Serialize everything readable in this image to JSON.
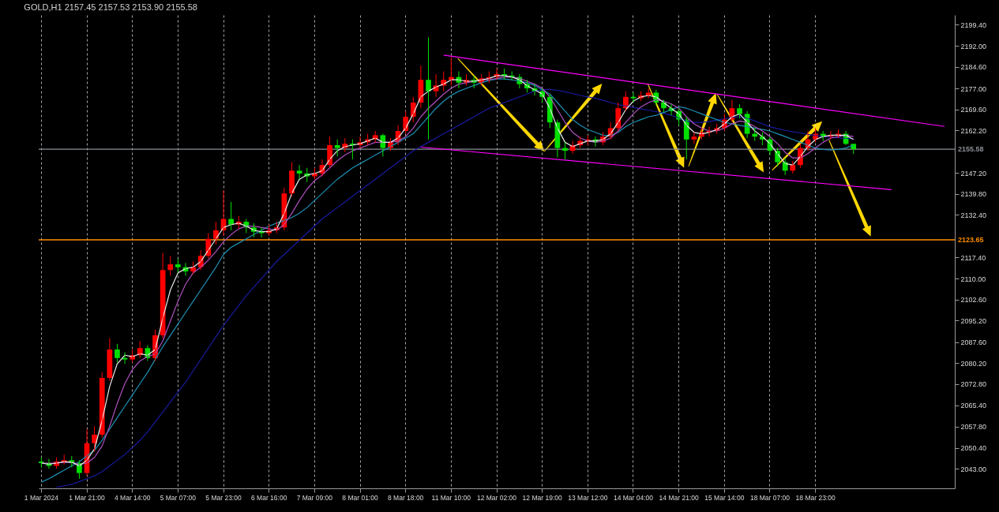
{
  "chart_data": {
    "type": "candlestick",
    "title": "GOLD,H1  2157.45 2157.53 2153.90 2155.58",
    "categories": [
      "1 Mar 2024",
      null,
      null,
      null,
      null,
      null,
      "1 Mar 21:00",
      null,
      null,
      null,
      null,
      null,
      "4 Mar 14:00",
      null,
      null,
      null,
      null,
      null,
      "5 Mar 07:00",
      null,
      null,
      null,
      null,
      null,
      "5 Mar 23:00",
      null,
      null,
      null,
      null,
      null,
      "6 Mar 16:00",
      null,
      null,
      null,
      null,
      null,
      "7 Mar 09:00",
      null,
      null,
      null,
      null,
      null,
      "8 Mar 01:00",
      null,
      null,
      null,
      null,
      null,
      "8 Mar 18:00",
      null,
      null,
      null,
      null,
      null,
      "11 Mar 10:00",
      null,
      null,
      null,
      null,
      null,
      "12 Mar 02:00",
      null,
      null,
      null,
      null,
      null,
      "12 Mar 19:00",
      null,
      null,
      null,
      null,
      null,
      "13 Mar 12:00",
      null,
      null,
      null,
      null,
      null,
      "14 Mar 04:00",
      null,
      null,
      null,
      null,
      null,
      "14 Mar 21:00",
      null,
      null,
      null,
      null,
      null,
      "15 Mar 14:00",
      null,
      null,
      null,
      null,
      null,
      "18 Mar 07:00",
      null,
      null,
      null,
      null,
      null,
      "18 Mar 23:00",
      null,
      null,
      null,
      null,
      null,
      null,
      null,
      null,
      null,
      null,
      null,
      null,
      null,
      null,
      null,
      null,
      null,
      null
    ],
    "ohlc": [
      [
        2045.5,
        2047,
        2043.5,
        2045
      ],
      [
        2045,
        2046.5,
        2043,
        2044
      ],
      [
        2044,
        2047,
        2043,
        2045.5
      ],
      [
        2045.5,
        2048,
        2044.5,
        2046
      ],
      [
        2046,
        2047.5,
        2043.5,
        2045
      ],
      [
        2045,
        2046,
        2039.5,
        2041.5
      ],
      [
        2041.5,
        2057,
        2040.5,
        2052
      ],
      [
        2052,
        2058,
        2049,
        2055
      ],
      [
        2055,
        2077,
        2054,
        2075
      ],
      [
        2075,
        2089,
        2074,
        2085
      ],
      [
        2085,
        2087,
        2080.5,
        2082
      ],
      [
        2082,
        2084,
        2080,
        2081.5
      ],
      [
        2081.5,
        2085,
        2080.5,
        2083
      ],
      [
        2083,
        2088,
        2082,
        2085.5
      ],
      [
        2085.5,
        2086.5,
        2081,
        2082
      ],
      [
        2082,
        2092,
        2081,
        2090
      ],
      [
        2090,
        2119,
        2089,
        2113
      ],
      [
        2113,
        2118,
        2111,
        2115
      ],
      [
        2115,
        2117,
        2112,
        2114
      ],
      [
        2114,
        2115.5,
        2111,
        2112.5
      ],
      [
        2112.5,
        2116,
        2111.5,
        2114
      ],
      [
        2114,
        2120,
        2113,
        2118
      ],
      [
        2118,
        2126,
        2117,
        2124
      ],
      [
        2124,
        2130,
        2122,
        2127
      ],
      [
        2127,
        2141,
        2125,
        2131
      ],
      [
        2131,
        2137,
        2127,
        2129
      ],
      [
        2129,
        2132,
        2127.5,
        2130
      ],
      [
        2130,
        2131,
        2126,
        2128
      ],
      [
        2128,
        2129.5,
        2124.5,
        2126.5
      ],
      [
        2126.5,
        2128,
        2124.5,
        2126
      ],
      [
        2126,
        2129,
        2125,
        2127
      ],
      [
        2127,
        2130,
        2126,
        2128
      ],
      [
        2128,
        2142,
        2127,
        2140
      ],
      [
        2140,
        2151,
        2139,
        2148
      ],
      [
        2148,
        2150,
        2145,
        2147
      ],
      [
        2147,
        2149,
        2144,
        2146
      ],
      [
        2146,
        2149,
        2145,
        2147
      ],
      [
        2147,
        2152,
        2146,
        2150
      ],
      [
        2150,
        2160,
        2149,
        2157
      ],
      [
        2157,
        2159,
        2153,
        2156
      ],
      [
        2156,
        2159.5,
        2154.5,
        2157.5
      ],
      [
        2157.5,
        2159,
        2152,
        2157
      ],
      [
        2157,
        2160,
        2156,
        2158
      ],
      [
        2158,
        2161,
        2157,
        2159
      ],
      [
        2159,
        2162,
        2158,
        2160.5
      ],
      [
        2160.5,
        2161,
        2153,
        2156
      ],
      [
        2156,
        2159.5,
        2155,
        2158
      ],
      [
        2158,
        2164,
        2157,
        2162
      ],
      [
        2162,
        2169,
        2161,
        2167
      ],
      [
        2167,
        2174,
        2165,
        2172
      ],
      [
        2172,
        2185,
        2170,
        2180
      ],
      [
        2180,
        2194.9,
        2159,
        2176
      ],
      [
        2176,
        2182,
        2174,
        2178
      ],
      [
        2178,
        2183,
        2176,
        2180
      ],
      [
        2180,
        2188,
        2178,
        2181
      ],
      [
        2181,
        2183,
        2177,
        2179
      ],
      [
        2179,
        2182,
        2178,
        2180
      ],
      [
        2180,
        2181.5,
        2177,
        2179
      ],
      [
        2179,
        2182,
        2178,
        2180.5
      ],
      [
        2180.5,
        2183,
        2179,
        2181
      ],
      [
        2181,
        2184,
        2180,
        2182
      ],
      [
        2182,
        2184,
        2180,
        2181.5
      ],
      [
        2181.5,
        2183,
        2180,
        2181
      ],
      [
        2181,
        2182,
        2177,
        2178.5
      ],
      [
        2178.5,
        2180,
        2175.5,
        2177
      ],
      [
        2177,
        2178.5,
        2174.5,
        2176
      ],
      [
        2176,
        2177,
        2172,
        2174
      ],
      [
        2174,
        2175,
        2163,
        2165
      ],
      [
        2165,
        2166,
        2152.7,
        2156
      ],
      [
        2156,
        2158,
        2152,
        2155
      ],
      [
        2155,
        2158.5,
        2154,
        2157
      ],
      [
        2157,
        2160,
        2156,
        2158.5
      ],
      [
        2158.5,
        2160.5,
        2157,
        2159
      ],
      [
        2159,
        2160,
        2156.5,
        2158
      ],
      [
        2158,
        2161.5,
        2157,
        2160
      ],
      [
        2160,
        2165,
        2159,
        2163
      ],
      [
        2163,
        2172,
        2162,
        2170
      ],
      [
        2170,
        2176,
        2169,
        2174
      ],
      [
        2174,
        2175.5,
        2172,
        2173.5
      ],
      [
        2173.5,
        2176,
        2172.5,
        2174.5
      ],
      [
        2174.5,
        2177,
        2173.5,
        2175.5
      ],
      [
        2175.5,
        2176.5,
        2171,
        2172
      ],
      [
        2172,
        2173,
        2168.5,
        2170
      ],
      [
        2170,
        2171.5,
        2167.5,
        2169
      ],
      [
        2169,
        2170,
        2164,
        2166
      ],
      [
        2166,
        2167,
        2152,
        2159
      ],
      [
        2159,
        2161.5,
        2157.5,
        2160
      ],
      [
        2160,
        2163,
        2159,
        2161.5
      ],
      [
        2161.5,
        2163.5,
        2160,
        2162
      ],
      [
        2162,
        2164.5,
        2161,
        2163
      ],
      [
        2163,
        2168,
        2162,
        2166
      ],
      [
        2166,
        2173,
        2165,
        2170
      ],
      [
        2170,
        2171.5,
        2166.5,
        2168
      ],
      [
        2168,
        2169,
        2159.5,
        2161
      ],
      [
        2161,
        2163,
        2158.5,
        2160
      ],
      [
        2160,
        2161.5,
        2157,
        2159
      ],
      [
        2159,
        2160,
        2153.5,
        2155
      ],
      [
        2155,
        2156,
        2149.5,
        2151
      ],
      [
        2151,
        2152.5,
        2146.5,
        2148
      ],
      [
        2148,
        2151.5,
        2147,
        2150
      ],
      [
        2150,
        2157.5,
        2149,
        2156
      ],
      [
        2156,
        2162,
        2155,
        2159
      ],
      [
        2159,
        2163,
        2158,
        2161
      ],
      [
        2161,
        2162,
        2158.5,
        2160
      ],
      [
        2160,
        2162,
        2159,
        2160.5
      ],
      [
        2160.5,
        2162.5,
        2159.5,
        2161
      ],
      [
        2161,
        2162,
        2157,
        2157.45
      ],
      [
        2157.45,
        2157.53,
        2153.9,
        2155.58
      ],
      null,
      null,
      null,
      null,
      null,
      null,
      null,
      null,
      null,
      null,
      null,
      null,
      null
    ],
    "colors": [
      "#00e000",
      "#00e000",
      "#ff0000",
      "#ff0000",
      "#00e000",
      "#00e000",
      "#ff0000",
      "#ff0000",
      "#ff0000",
      "#ff0000",
      "#00e000",
      "#00e000",
      "#ff0000",
      "#ff0000",
      "#00e000",
      "#ff0000",
      "#ff0000",
      "#ff0000",
      "#00e000",
      "#00e000",
      "#ff0000",
      "#ff0000",
      "#ff0000",
      "#ff0000",
      "#ff0000",
      "#00e000",
      "#ff0000",
      "#00e000",
      "#00e000",
      "#00e000",
      "#ff0000",
      "#ff0000",
      "#ff0000",
      "#ff0000",
      "#00e000",
      "#00e000",
      "#ff0000",
      "#ff0000",
      "#ff0000",
      "#00e000",
      "#ff0000",
      "#00e000",
      "#ff0000",
      "#ff0000",
      "#ff0000",
      "#00e000",
      "#ff0000",
      "#ff0000",
      "#ff0000",
      "#ff0000",
      "#ff0000",
      "#00e000",
      "#ff0000",
      "#ff0000",
      "#ff0000",
      "#00e000",
      "#ff0000",
      "#00e000",
      "#ff0000",
      "#ff0000",
      "#ff0000",
      "#00e000",
      "#00e000",
      "#00e000",
      "#00e000",
      "#00e000",
      "#00e000",
      "#00e000",
      "#00e000",
      "#00e000",
      "#ff0000",
      "#ff0000",
      "#ff0000",
      "#00e000",
      "#ff0000",
      "#ff0000",
      "#ff0000",
      "#ff0000",
      "#00e000",
      "#ff0000",
      "#ff0000",
      "#00e000",
      "#00e000",
      "#00e000",
      "#00e000",
      "#00e000",
      "#ff0000",
      "#ff0000",
      "#ff0000",
      "#ff0000",
      "#ff0000",
      "#ff0000",
      "#00e000",
      "#00e000",
      "#00e000",
      "#00e000",
      "#00e000",
      "#00e000",
      "#00e000",
      "#ff0000",
      "#ff0000",
      "#ff0000",
      "#ff0000",
      "#00e000",
      "#ff0000",
      "#ff0000",
      "#00e000",
      "#00e000",
      null,
      null,
      null,
      null,
      null,
      null,
      null,
      null,
      null,
      null,
      null,
      null,
      null
    ],
    "series": [
      {
        "type": "line",
        "color": "#1a1aa0",
        "values": [
          null,
          null,
          2036.5,
          2037,
          2037.5,
          2038.5,
          2039.5,
          2040.5,
          2042,
          2044,
          2046,
          2048,
          2050.5,
          2053,
          2056,
          2059.5,
          2063,
          2066.5,
          2070,
          2073.5,
          2077.5,
          2081.5,
          2085.5,
          2089.5,
          2093.5,
          2097,
          2100.5,
          2104,
          2107,
          2110,
          2113,
          2116,
          2118.5,
          2121,
          2123.5,
          2126,
          2128.5,
          2131,
          2133,
          2135,
          2137,
          2139,
          2141,
          2143,
          2145,
          2147,
          2149,
          2151,
          2153,
          2155,
          2156.5,
          2158,
          2159.5,
          2161,
          2162.5,
          2164,
          2165.5,
          2167,
          2168.5,
          2170,
          2171,
          2172,
          2173,
          2174,
          2175,
          2176,
          2176.5,
          2176.6,
          2176.3,
          2175.8,
          2175.2,
          2174.5,
          2174,
          2173.5,
          2172.8,
          2172,
          2171.3,
          2170.8,
          2170.3,
          2169.8,
          2169.3,
          2168.8,
          2168.3,
          2167.5,
          2166.5,
          2165.5,
          2165,
          2165,
          2165.3,
          2165.8,
          2166.3,
          2166.8,
          2167,
          2166.5,
          2165.5,
          2164.5,
          2163.5,
          2162.8,
          2162.2,
          2161.7,
          2161.3,
          2160.8,
          2160.4,
          2160,
          2159.8,
          2159.6,
          2159.4,
          2159.3,
          null,
          null,
          null,
          null,
          null,
          null,
          null,
          null,
          null,
          null,
          null,
          null,
          null
        ]
      },
      {
        "type": "line",
        "color": "#1e90b4",
        "values": [
          2038.3,
          2039.5,
          2041,
          2042.5,
          2044,
          2045.5,
          2047.5,
          2049.5,
          2053,
          2057,
          2061,
          2065,
          2069,
          2073,
          2077,
          2081.5,
          2086,
          2090,
          2094,
          2098,
          2102,
          2106,
          2110,
          2114,
          2118.5,
          2121,
          2122.5,
          2124,
          2125.5,
          2127,
          2128.5,
          2129.5,
          2130.5,
          2131.5,
          2133,
          2135,
          2137.5,
          2140,
          2142.5,
          2145,
          2147,
          2149,
          2150.5,
          2152,
          2153.5,
          2155,
          2156.5,
          2158,
          2159.5,
          2161,
          2164,
          2167,
          2170,
          2172.5,
          2174.5,
          2176,
          2177,
          2178,
          2179,
          2179.8,
          2180.3,
          2180.3,
          2180,
          2179.5,
          2179,
          2178,
          2176.5,
          2175,
          2172,
          2169,
          2166,
          2164,
          2162.5,
          2161.5,
          2160.5,
          2160.4,
          2161.5,
          2163.5,
          2165,
          2166,
          2167,
          2167.5,
          2168.5,
          2169.5,
          2170.5,
          2170,
          2169,
          2168,
          2167,
          2166,
          2165,
          2164.5,
          2164,
          2163.5,
          2163,
          2162.5,
          2162,
          2161,
          2160,
          2159,
          2158,
          2157,
          2156,
          2155.5,
          2155.3,
          2155.5,
          2156,
          2157,
          null,
          null,
          null,
          null,
          null,
          null,
          null,
          null,
          null,
          null,
          null,
          null,
          null
        ]
      },
      {
        "type": "line",
        "color": "#b050c0",
        "values": [
          2045,
          2045,
          2045,
          2045.2,
          2045.3,
          2044.5,
          2045,
          2047,
          2051,
          2058,
          2066,
          2073,
          2078,
          2081,
          2082.5,
          2083.5,
          2088,
          2095,
          2102,
          2108,
          2112,
          2114,
          2116.5,
          2119.5,
          2123,
          2125.5,
          2127.5,
          2128.5,
          2128.5,
          2128,
          2127.5,
          2127,
          2129,
          2133,
          2137.5,
          2141.5,
          2144.5,
          2146.5,
          2149,
          2151.5,
          2153.5,
          2155,
          2156,
          2157,
          2158,
          2158,
          2158,
          2158.5,
          2160,
          2163,
          2167,
          2170,
          2172.5,
          2175,
          2177,
          2178.5,
          2179,
          2179.5,
          2180,
          2180,
          2180.5,
          2181,
          2181,
          2180.5,
          2179.5,
          2178.5,
          2177,
          2174,
          2169.5,
          2165,
          2161.5,
          2159.5,
          2158.5,
          2158,
          2158.5,
          2159.5,
          2162,
          2165,
          2168,
          2170.5,
          2172,
          2173,
          2172.5,
          2171.5,
          2170,
          2167,
          2164.5,
          2163,
          2162,
          2162,
          2163,
          2164.5,
          2165.5,
          2165,
          2163.5,
          2162,
          2160,
          2157.5,
          2154.5,
          2152.5,
          2152.5,
          2154,
          2156,
          2158,
          2159.5,
          2160,
          2160.5,
          2160,
          null,
          null,
          null,
          null,
          null,
          null,
          null,
          null,
          null,
          null,
          null,
          null,
          null
        ]
      },
      {
        "type": "line",
        "color": "#e8e8e8",
        "values": [
          2045,
          2044.6,
          2045,
          2045.5,
          2045.3,
          2044,
          2046,
          2050,
          2060,
          2072,
          2080,
          2083,
          2082.5,
          2083.5,
          2083,
          2085,
          2096,
          2106,
          2112,
          2113.5,
          2114,
          2116,
          2120,
          2124,
          2128,
          2129,
          2129.5,
          2128.5,
          2127,
          2126.5,
          2126.5,
          2127.5,
          2133,
          2140,
          2145,
          2146.5,
          2147,
          2148,
          2152,
          2155,
          2156.5,
          2157,
          2157.5,
          2158.5,
          2159.5,
          2158,
          2158,
          2159.5,
          2163,
          2168,
          2174,
          2176,
          2177.5,
          2178.5,
          2180,
          2180,
          2179.5,
          2179.5,
          2180,
          2180.5,
          2181.5,
          2181.5,
          2181,
          2180,
          2178,
          2176.5,
          2175,
          2170,
          2163,
          2158,
          2156.5,
          2157.5,
          2158.5,
          2158.5,
          2159,
          2161,
          2165,
          2169.5,
          2172.5,
          2174,
          2174.5,
          2174,
          2172,
          2170,
          2168,
          2164,
          2161.5,
          2161,
          2161.5,
          2162.5,
          2164.5,
          2167,
          2168,
          2165,
          2162,
          2160,
          2157.5,
          2154,
          2150.5,
          2150,
          2153,
          2156.5,
          2159,
          2160,
          2160.5,
          2160.5,
          2160.5,
          2159,
          null,
          null,
          null,
          null,
          null,
          null,
          null,
          null,
          null,
          null,
          null,
          null,
          null
        ]
      },
      {
        "type": "line",
        "color": "#ff00ff",
        "values": [
          null,
          null,
          null,
          null,
          null,
          null,
          null,
          null,
          null,
          null,
          null,
          null,
          null,
          null,
          null,
          null,
          null,
          null,
          null,
          null,
          null,
          null,
          null,
          null,
          null,
          null,
          null,
          null,
          null,
          null,
          null,
          null,
          null,
          null,
          null,
          null,
          null,
          null,
          null,
          null,
          null,
          null,
          null,
          null,
          null,
          null,
          null,
          null,
          null,
          null,
          null,
          null,
          null,
          2188.7,
          null,
          null,
          null,
          null,
          null,
          null,
          null,
          null,
          null,
          null,
          null,
          null,
          null,
          null,
          null,
          null,
          null,
          null,
          null,
          null,
          null,
          null,
          null,
          null,
          null,
          null,
          null,
          null,
          null,
          null,
          null,
          null,
          null,
          null,
          null,
          null,
          null,
          null,
          null,
          null,
          null,
          null,
          null,
          null,
          null,
          null,
          null,
          null,
          null,
          null,
          null,
          null,
          null,
          null,
          null,
          null,
          null,
          null,
          null,
          null,
          null,
          null,
          null,
          null,
          null,
          2163.6,
          null
        ]
      },
      {
        "type": "line",
        "color": "#ff00ff",
        "values": [
          null,
          null,
          null,
          null,
          null,
          null,
          null,
          null,
          null,
          null,
          null,
          null,
          null,
          null,
          null,
          null,
          null,
          null,
          null,
          null,
          null,
          null,
          null,
          null,
          null,
          null,
          null,
          null,
          null,
          null,
          null,
          null,
          null,
          null,
          null,
          null,
          null,
          null,
          null,
          null,
          null,
          null,
          null,
          null,
          null,
          null,
          null,
          null,
          null,
          null,
          2156.3,
          null,
          null,
          null,
          null,
          null,
          null,
          null,
          null,
          null,
          null,
          null,
          null,
          null,
          null,
          null,
          null,
          null,
          null,
          null,
          null,
          null,
          null,
          null,
          null,
          null,
          null,
          null,
          null,
          null,
          null,
          null,
          null,
          null,
          null,
          null,
          null,
          null,
          null,
          null,
          null,
          null,
          null,
          null,
          null,
          null,
          null,
          null,
          null,
          null,
          null,
          null,
          null,
          null,
          null,
          null,
          null,
          null,
          null,
          null,
          null,
          null,
          2141.3,
          null,
          null,
          null,
          null,
          null,
          null,
          null,
          null
        ]
      }
    ],
    "ylim": [
      2036.1,
      2202.85
    ],
    "yticks": [
      {
        "value": 2043,
        "label": "2043.00"
      },
      {
        "value": 2050.4,
        "label": "2050.40"
      },
      {
        "value": 2057.8,
        "label": "2057.80"
      },
      {
        "value": 2065.4,
        "label": "2065.40"
      },
      {
        "value": 2072.8,
        "label": "2072.80"
      },
      {
        "value": 2080.2,
        "label": "2080.20"
      },
      {
        "value": 2087.6,
        "label": "2087.60"
      },
      {
        "value": 2095.2,
        "label": "2095.20"
      },
      {
        "value": 2102.6,
        "label": "2102.60"
      },
      {
        "value": 2110,
        "label": "2110.00"
      },
      {
        "value": 2117.4,
        "label": "2117.40"
      },
      {
        "value": 2132.4,
        "label": "2132.40"
      },
      {
        "value": 2139.8,
        "label": "2139.80"
      },
      {
        "value": 2147.2,
        "label": "2147.20"
      },
      {
        "value": 2162.2,
        "label": "2162.20"
      },
      {
        "value": 2169.6,
        "label": "2169.60"
      },
      {
        "value": 2177,
        "label": "2177.00"
      },
      {
        "value": 2184.6,
        "label": "2184.60"
      },
      {
        "value": 2192,
        "label": "2192.00"
      },
      {
        "value": 2199.4,
        "label": "2199.40"
      }
    ],
    "ref_lines": [
      {
        "axis": "y",
        "value": 2155.58,
        "label": "2155.58",
        "color": "#8a8f96"
      },
      {
        "axis": "y",
        "value": 2123.65,
        "label": "2123.65",
        "color": "#ff8c00"
      }
    ],
    "grid": "x"
  }
}
